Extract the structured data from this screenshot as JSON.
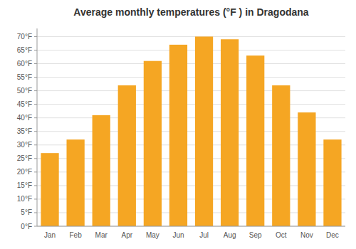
{
  "chart_data": {
    "type": "bar",
    "title": "Average monthly temperatures (°F ) in Dragodana",
    "categories": [
      "Jan",
      "Feb",
      "Mar",
      "Apr",
      "May",
      "Jun",
      "Jul",
      "Aug",
      "Sep",
      "Oct",
      "Nov",
      "Dec"
    ],
    "values": [
      27,
      32,
      41,
      52,
      61,
      67,
      70,
      69,
      63,
      52,
      42,
      32
    ],
    "color": "#F5A623",
    "ylim": [
      0,
      73
    ],
    "yticks": [
      {
        "value": 0,
        "label": "0°F"
      },
      {
        "value": 5,
        "label": "5°F"
      },
      {
        "value": 10,
        "label": "10°F"
      },
      {
        "value": 15,
        "label": "15°F"
      },
      {
        "value": 20,
        "label": "20°F"
      },
      {
        "value": 25,
        "label": "25°F"
      },
      {
        "value": 30,
        "label": "30°F"
      },
      {
        "value": 35,
        "label": "35°F"
      },
      {
        "value": 40,
        "label": "40°F"
      },
      {
        "value": 45,
        "label": "45°F"
      },
      {
        "value": 50,
        "label": "50°F"
      },
      {
        "value": 55,
        "label": "55°F"
      },
      {
        "value": 60,
        "label": "60°F"
      },
      {
        "value": 65,
        "label": "65°F"
      },
      {
        "value": 70,
        "label": "70°F"
      }
    ],
    "grid": true
  }
}
